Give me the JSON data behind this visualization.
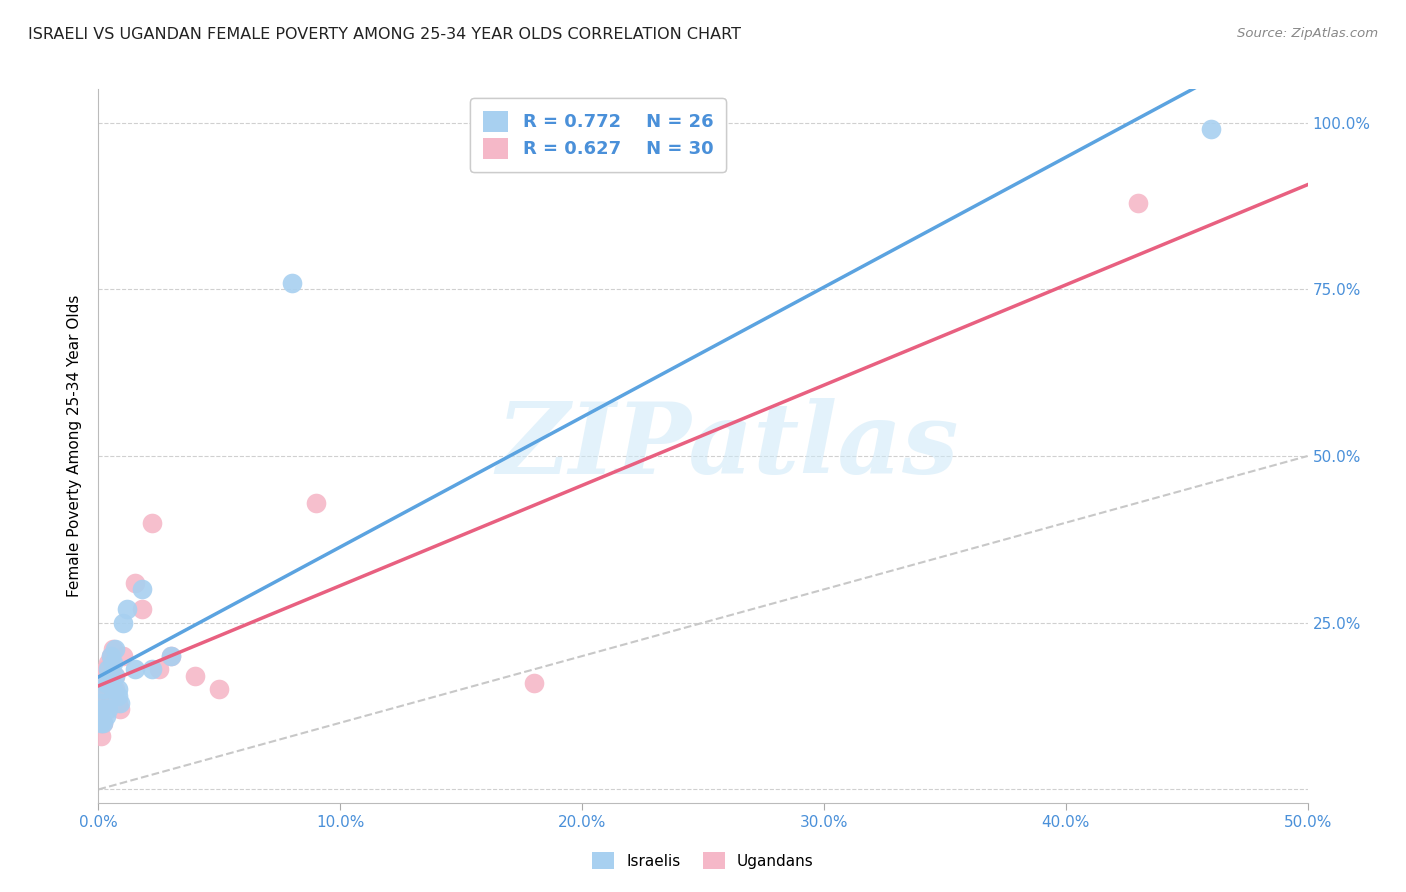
{
  "title": "ISRAELI VS UGANDAN FEMALE POVERTY AMONG 25-34 YEAR OLDS CORRELATION CHART",
  "source": "Source: ZipAtlas.com",
  "ylabel_label": "Female Poverty Among 25-34 Year Olds",
  "xlim": [
    0.0,
    0.5
  ],
  "ylim": [
    -0.02,
    1.05
  ],
  "xticks": [
    0.0,
    0.1,
    0.2,
    0.3,
    0.4,
    0.5
  ],
  "yticks": [
    0.0,
    0.25,
    0.5,
    0.75,
    1.0
  ],
  "xticklabels": [
    "0.0%",
    "10.0%",
    "20.0%",
    "30.0%",
    "40.0%",
    "50.0%"
  ],
  "yticklabels": [
    "",
    "25.0%",
    "50.0%",
    "75.0%",
    "100.0%"
  ],
  "israeli_color": "#a8d0f0",
  "ugandan_color": "#f5b8c8",
  "israeli_line_color": "#5ba3e0",
  "ugandan_line_color": "#e86080",
  "diagonal_color": "#c8c8c8",
  "watermark": "ZIPatlas",
  "israeli_x": [
    0.001,
    0.001,
    0.002,
    0.002,
    0.002,
    0.003,
    0.003,
    0.004,
    0.004,
    0.005,
    0.005,
    0.006,
    0.006,
    0.007,
    0.007,
    0.008,
    0.008,
    0.009,
    0.01,
    0.012,
    0.015,
    0.018,
    0.022,
    0.03,
    0.08,
    0.46
  ],
  "israeli_y": [
    0.1,
    0.13,
    0.12,
    0.15,
    0.1,
    0.16,
    0.11,
    0.18,
    0.12,
    0.17,
    0.2,
    0.19,
    0.15,
    0.21,
    0.17,
    0.15,
    0.14,
    0.13,
    0.25,
    0.27,
    0.18,
    0.3,
    0.18,
    0.2,
    0.76,
    0.99
  ],
  "ugandan_x": [
    0.001,
    0.001,
    0.001,
    0.002,
    0.002,
    0.002,
    0.002,
    0.003,
    0.003,
    0.003,
    0.004,
    0.004,
    0.005,
    0.005,
    0.006,
    0.007,
    0.007,
    0.008,
    0.009,
    0.01,
    0.015,
    0.018,
    0.022,
    0.025,
    0.03,
    0.04,
    0.05,
    0.09,
    0.18,
    0.43
  ],
  "ugandan_y": [
    0.08,
    0.1,
    0.12,
    0.1,
    0.13,
    0.15,
    0.17,
    0.14,
    0.16,
    0.18,
    0.13,
    0.19,
    0.2,
    0.16,
    0.21,
    0.15,
    0.17,
    0.13,
    0.12,
    0.2,
    0.31,
    0.27,
    0.4,
    0.18,
    0.2,
    0.17,
    0.15,
    0.43,
    0.16,
    0.88
  ]
}
